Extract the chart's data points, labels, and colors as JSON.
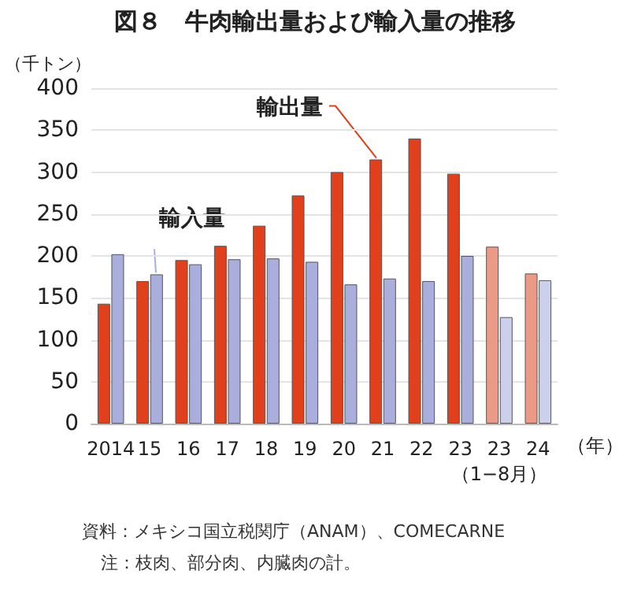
{
  "chart_data": {
    "type": "bar",
    "title": "図８　牛肉輸出量および輸入量の推移",
    "ylabel": "（千トン）",
    "xlabel": "（年）",
    "categories": [
      "2014",
      "15",
      "16",
      "17",
      "18",
      "19",
      "20",
      "21",
      "22",
      "23",
      "23\n（1−8月）",
      "24"
    ],
    "series": [
      {
        "name": "輸出量",
        "color": "#e0401c",
        "colors": [
          "#e0401c",
          "#e0401c",
          "#e0401c",
          "#e0401c",
          "#e0401c",
          "#e0401c",
          "#e0401c",
          "#e0401c",
          "#e0401c",
          "#e0401c",
          "#eb9a88",
          "#eb9a88"
        ],
        "values": [
          143,
          170,
          195,
          212,
          236,
          272,
          300,
          315,
          340,
          298,
          211,
          179
        ]
      },
      {
        "name": "輸入量",
        "color": "#a9aedc",
        "colors": [
          "#a9aedc",
          "#a9aedc",
          "#a9aedc",
          "#a9aedc",
          "#a9aedc",
          "#a9aedc",
          "#a9aedc",
          "#a9aedc",
          "#a9aedc",
          "#a9aedc",
          "#cdd0ea",
          "#cdd0ea"
        ],
        "values": [
          202,
          178,
          190,
          196,
          197,
          193,
          166,
          173,
          170,
          200,
          127,
          171
        ]
      }
    ],
    "ylim": [
      0,
      400
    ],
    "yticks": [
      0,
      50,
      100,
      150,
      200,
      250,
      300,
      350,
      400
    ],
    "grid": "y",
    "annotations": [
      "資料：メキシコ国立税関庁（ANAM）、COMECARNE",
      "注：枝肉、部分肉、内臓肉の計。"
    ]
  }
}
